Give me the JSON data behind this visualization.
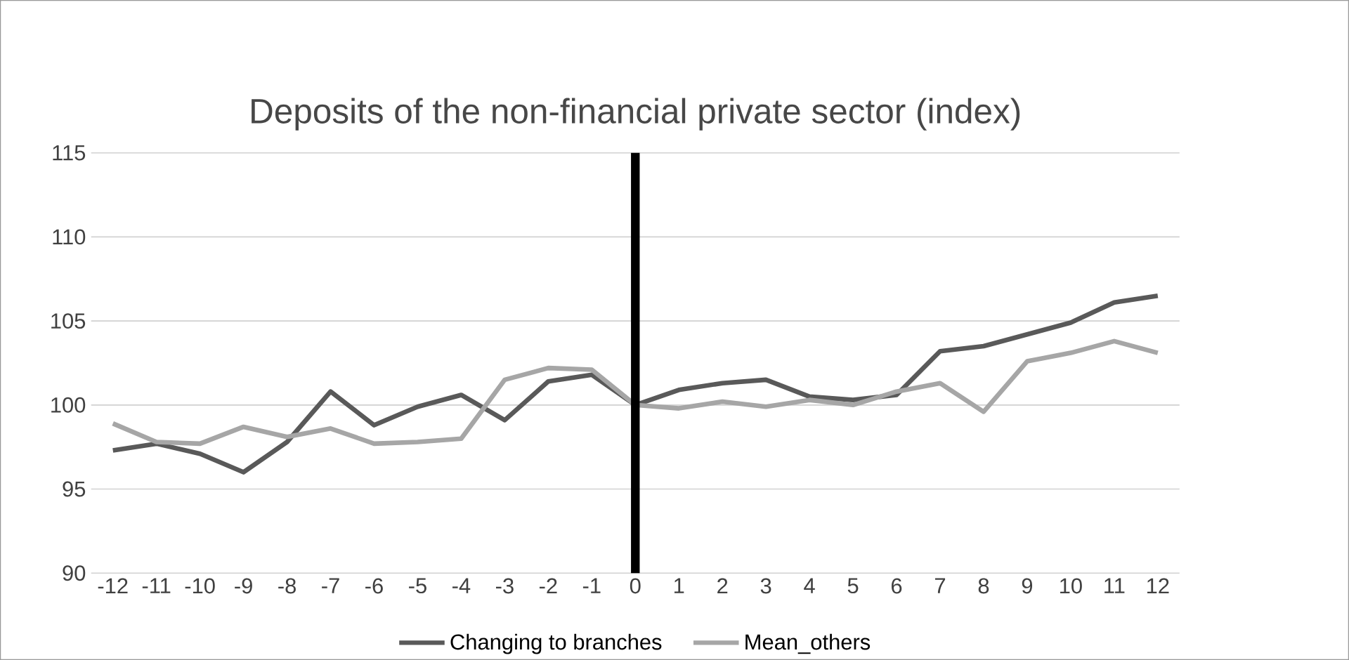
{
  "chart_data": {
    "type": "line",
    "title": "Deposits of the non-financial private sector (index)",
    "x": [
      -12,
      -11,
      -10,
      -9,
      -8,
      -7,
      -6,
      -5,
      -4,
      -3,
      -2,
      -1,
      0,
      1,
      2,
      3,
      4,
      5,
      6,
      7,
      8,
      9,
      10,
      11,
      12
    ],
    "xlim": [
      -12.5,
      12.5
    ],
    "xticks": [
      -12,
      -11,
      -10,
      -9,
      -8,
      -7,
      -6,
      -5,
      -4,
      -3,
      -2,
      -1,
      0,
      1,
      2,
      3,
      4,
      5,
      6,
      7,
      8,
      9,
      10,
      11,
      12
    ],
    "ylim": [
      90,
      115
    ],
    "yticks": [
      90,
      95,
      100,
      105,
      110,
      115
    ],
    "grid": "y",
    "legend": "bottom",
    "marker": "none",
    "line_style": "solid",
    "series": [
      {
        "name": "Changing to branches",
        "color": "#595959",
        "values": [
          97.3,
          97.7,
          97.1,
          96.0,
          97.8,
          100.8,
          98.8,
          99.9,
          100.6,
          99.1,
          101.4,
          101.8,
          100,
          100.9,
          101.3,
          101.5,
          100.5,
          100.3,
          100.6,
          103.2,
          103.5,
          104.2,
          104.9,
          106.1,
          106.5
        ]
      },
      {
        "name": "Mean_others",
        "color": "#a6a6a6",
        "values": [
          98.9,
          97.8,
          97.7,
          98.7,
          98.1,
          98.6,
          97.7,
          97.8,
          98.0,
          101.5,
          102.2,
          102.1,
          100,
          99.8,
          100.2,
          99.9,
          100.3,
          100.0,
          100.8,
          101.3,
          99.6,
          102.6,
          103.1,
          103.8,
          103.1
        ]
      }
    ],
    "ref_lines": [
      {
        "axis": "x",
        "value": 0,
        "color": "#000000",
        "line_style": "solid"
      }
    ]
  }
}
